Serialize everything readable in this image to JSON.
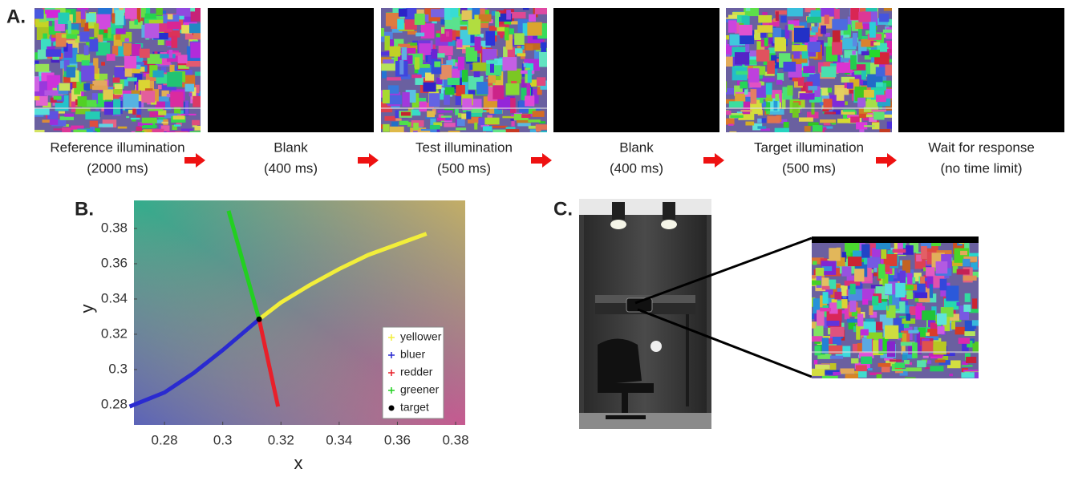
{
  "panels": {
    "a": {
      "label": "A.",
      "steps": [
        {
          "line1": "Reference illumination",
          "line2": "(2000 ms)"
        },
        {
          "line1": "Blank",
          "line2": "(400 ms)"
        },
        {
          "line1": "Test illumination",
          "line2": "(500 ms)"
        },
        {
          "line1": "Blank",
          "line2": "(400 ms)"
        },
        {
          "line1": "Target illumination",
          "line2": "(500 ms)"
        },
        {
          "line1": "Wait for response",
          "line2": "(no time limit)"
        }
      ]
    },
    "b": {
      "label": "B."
    },
    "c": {
      "label": "C."
    }
  },
  "chart_data": {
    "type": "scatter",
    "xlabel": "x",
    "ylabel": "y",
    "xlim": [
      0.2695,
      0.3833
    ],
    "ylim": [
      0.2686,
      0.3959
    ],
    "xticks": [
      0.28,
      0.3,
      0.32,
      0.34,
      0.36,
      0.38
    ],
    "yticks": [
      0.28,
      0.3,
      0.32,
      0.34,
      0.36,
      0.38
    ],
    "legend": "lower right",
    "series": [
      {
        "name": "yellower",
        "color": "#f2ee3a",
        "x": [
          0.3125,
          0.32,
          0.33,
          0.34,
          0.35,
          0.36,
          0.37
        ],
        "values": [
          0.3285,
          0.338,
          0.348,
          0.357,
          0.365,
          0.371,
          0.377
        ]
      },
      {
        "name": "bluer",
        "color": "#2a2ad0",
        "x": [
          0.268,
          0.28,
          0.29,
          0.3,
          0.3125
        ],
        "values": [
          0.279,
          0.287,
          0.298,
          0.311,
          0.3285
        ]
      },
      {
        "name": "redder",
        "color": "#e8202a",
        "x": [
          0.3125,
          0.319
        ],
        "values": [
          0.3285,
          0.279
        ]
      },
      {
        "name": "greener",
        "color": "#22d020",
        "x": [
          0.3125,
          0.302
        ],
        "values": [
          0.3285,
          0.39
        ]
      },
      {
        "name": "target",
        "color": "#000000",
        "x": [
          0.3125
        ],
        "values": [
          0.3285
        ]
      }
    ]
  }
}
